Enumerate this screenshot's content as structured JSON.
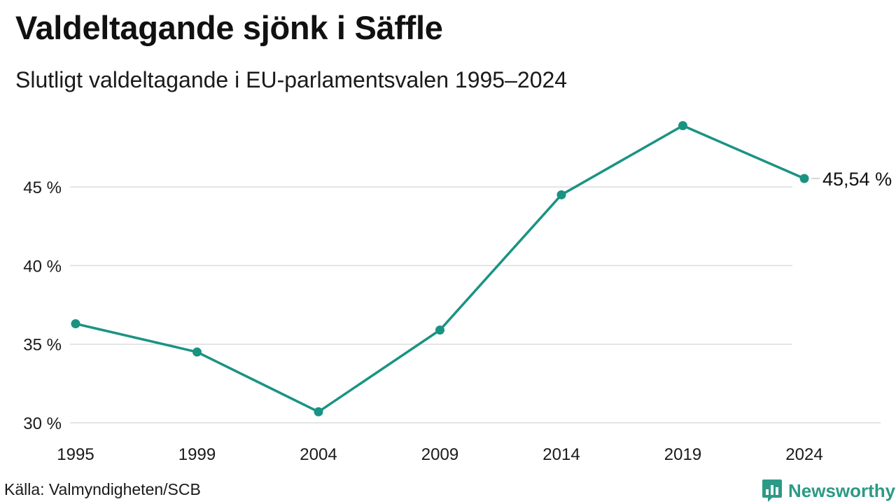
{
  "title": "Valdeltagande sjönk i Säffle",
  "subtitle": "Slutligt valdeltagande i EU-parlamentsvalen 1995–2024",
  "source": "Källa: Valmyndigheten/SCB",
  "brand": {
    "name": "Newsworthy",
    "color": "#2c9a86",
    "icon": "bar-chart-speech-bubble-icon"
  },
  "colors": {
    "series": "#1a9383",
    "grid": "#dcdcdc",
    "text": "#111111"
  },
  "chart_data": {
    "type": "line",
    "title": "Valdeltagande sjönk i Säffle",
    "subtitle": "Slutligt valdeltagande i EU-parlamentsvalen 1995–2024",
    "x": [
      "1995",
      "1999",
      "2004",
      "2009",
      "2014",
      "2019",
      "2024"
    ],
    "series": [
      {
        "values": [
          36.3,
          34.5,
          30.7,
          35.9,
          44.5,
          48.9,
          45.54
        ]
      }
    ],
    "y_ticks": [
      30,
      35,
      40,
      45
    ],
    "y_tick_labels": [
      "30 %",
      "35 %",
      "40 %",
      "45 %"
    ],
    "ylim": [
      30,
      50
    ],
    "end_label": "45,54 %",
    "grid": true,
    "legend": "none"
  }
}
